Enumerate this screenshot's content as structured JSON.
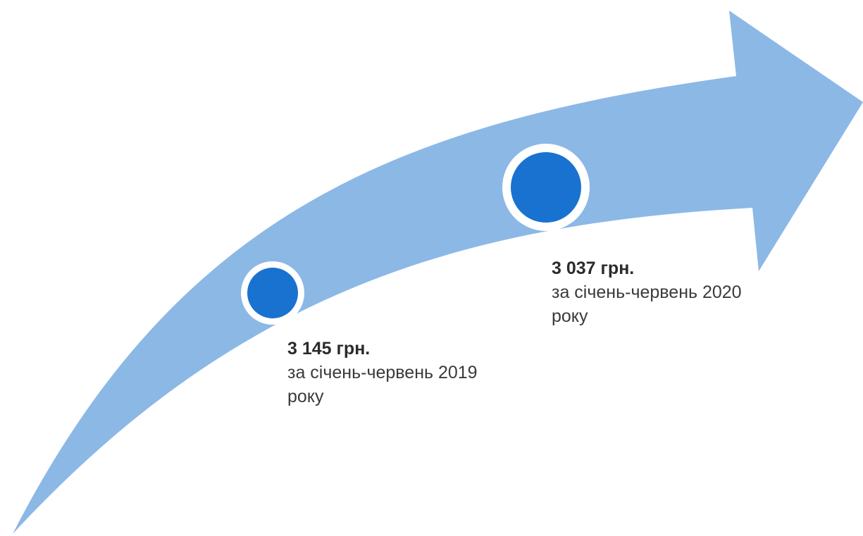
{
  "colors": {
    "arrow": "#8cb8e6",
    "marker_fill": "#1a72d0",
    "marker_ring": "#ffffff",
    "text": "#3a3a3a"
  },
  "milestones": [
    {
      "amount": "3 145 грн.",
      "period": "за січень-червень 2019 року"
    },
    {
      "amount": "3 037 грн.",
      "period": "за січень-червень 2020 року"
    }
  ]
}
